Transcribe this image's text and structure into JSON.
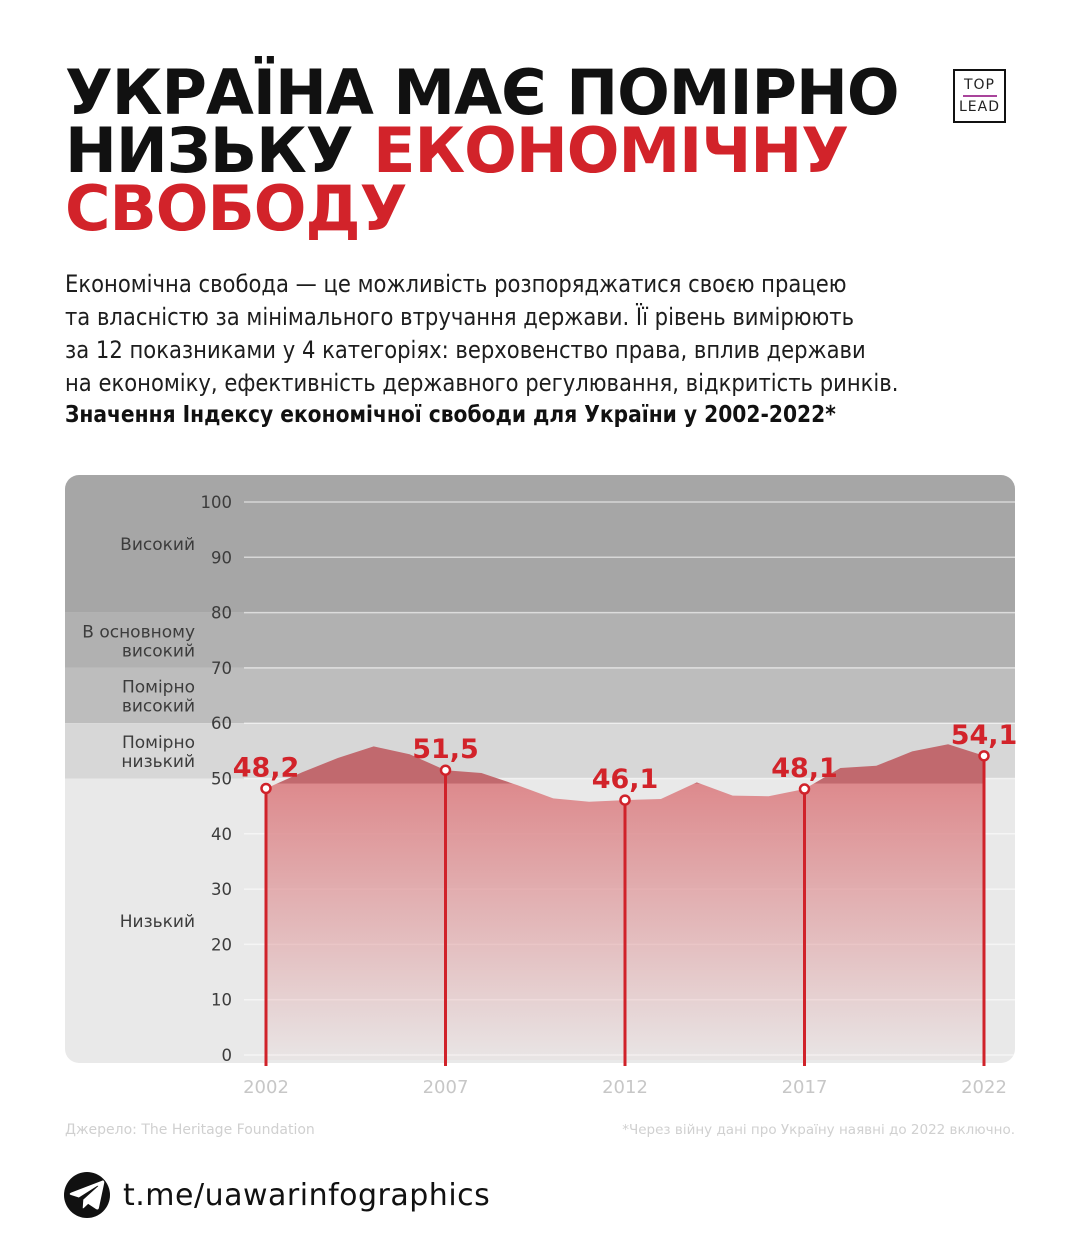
{
  "colors": {
    "accent_red": "#d2232a",
    "line_red": "#d0222a",
    "black": "#111111",
    "band_label": "#3c3c3c",
    "tick_label": "#3c3c3c",
    "year_label": "#c7c7c7",
    "muted": "#d0d0d0",
    "area_above_50": "#c1696e",
    "area_below_50": "#dd8a8d",
    "grid_line": "rgba(255,255,255,0.55)",
    "logo_line": "#a9449b"
  },
  "logo": {
    "top": "TOP",
    "lead": "LEAD"
  },
  "headline": {
    "line1": "УКРАЇНА МАЄ ПОМІРНО",
    "line2_black": "НИЗЬКУ ",
    "line2_red": "ЕКОНОМІЧНУ",
    "line3_red": "СВОБОДУ"
  },
  "intro": {
    "lines": [
      "Економічна свобода — це можливість розпоряджатися своєю працею",
      "та власністю за мінімального втручання держави. Її рівень вимірюють",
      "за 12 показниками у 4 категоріях: верховенство права, вплив держави",
      "на економіку, ефективність державного регулювання, відкритість ринків."
    ]
  },
  "chart_data": {
    "type": "area",
    "title": "Значення Індексу економічної свободи для України у 2002-2022*",
    "x": [
      2002,
      2003,
      2004,
      2005,
      2006,
      2007,
      2008,
      2009,
      2010,
      2011,
      2012,
      2013,
      2014,
      2015,
      2016,
      2017,
      2018,
      2019,
      2020,
      2021,
      2022
    ],
    "values": [
      48.2,
      51.1,
      53.7,
      55.8,
      54.4,
      51.5,
      51.0,
      48.8,
      46.4,
      45.8,
      46.1,
      46.3,
      49.3,
      46.9,
      46.8,
      48.1,
      51.9,
      52.3,
      54.9,
      56.2,
      54.1
    ],
    "ylim": [
      0,
      100
    ],
    "yticks": [
      0,
      10,
      20,
      30,
      40,
      50,
      60,
      70,
      80,
      90,
      100
    ],
    "x_tick_labels": [
      "2002",
      "2007",
      "2012",
      "2017",
      "2022"
    ],
    "labeled_points": [
      {
        "x": 2002,
        "value": 48.2,
        "label": "48,2"
      },
      {
        "x": 2007,
        "value": 51.5,
        "label": "51,5"
      },
      {
        "x": 2012,
        "value": 46.1,
        "label": "46,1"
      },
      {
        "x": 2017,
        "value": 48.1,
        "label": "48,1"
      },
      {
        "x": 2022,
        "value": 54.1,
        "label": "54,1"
      }
    ],
    "bands": [
      {
        "label_lines": [
          "Високий"
        ],
        "from": 80,
        "to": 100,
        "color": "#a6a6a6"
      },
      {
        "label_lines": [
          "В основному",
          "високий"
        ],
        "from": 70,
        "to": 80,
        "color": "#b1b1b1"
      },
      {
        "label_lines": [
          "Помірно",
          "високий"
        ],
        "from": 60,
        "to": 70,
        "color": "#bdbdbd"
      },
      {
        "label_lines": [
          "Помірно",
          "низький"
        ],
        "from": 50,
        "to": 60,
        "color": "#d7d7d7"
      },
      {
        "label_lines": [
          "Низький"
        ],
        "from": 0,
        "to": 50,
        "color": "#e9e9e9"
      }
    ],
    "grid": true,
    "legend_position": "none"
  },
  "source": "Джерело: The Heritage Foundation",
  "footnote": "*Через війну дані про Україну наявні до 2022 включно.",
  "footer": {
    "handle": "t.me/uawarinfographics",
    "icon": "telegram-icon"
  }
}
